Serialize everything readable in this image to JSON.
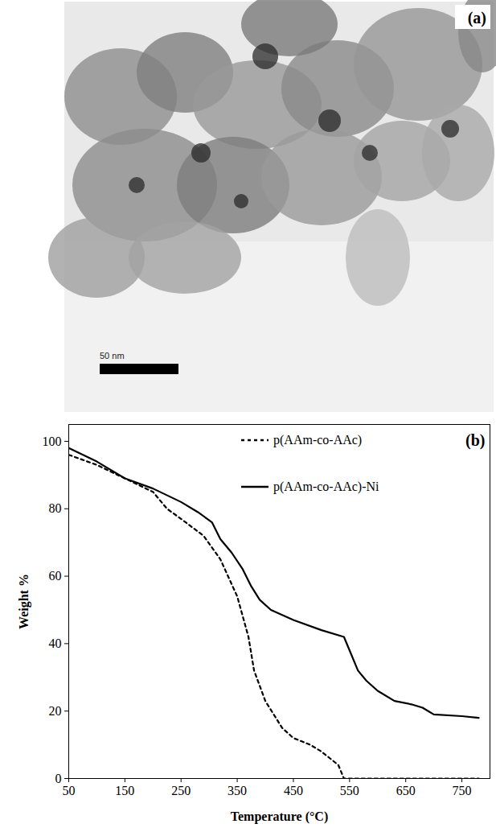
{
  "image_panel": {
    "label": "(a)",
    "scale_bar": "50 nm"
  },
  "chart_data": {
    "type": "line",
    "label": "(b)",
    "x_label": "Temperature (°C)",
    "y_label": "Weight %",
    "xlim": [
      50,
      800
    ],
    "xticks": [
      50,
      150,
      250,
      350,
      450,
      550,
      650,
      750
    ],
    "ylim": [
      0,
      105
    ],
    "yticks": [
      0,
      20,
      40,
      60,
      80,
      100
    ],
    "grid": false,
    "legend": "upper right",
    "series": [
      {
        "name": "p(AAm-co-AAc)",
        "color": "#000000",
        "line_style": "dashed",
        "x": [
          50,
          100,
          150,
          200,
          225,
          250,
          290,
          320,
          350,
          370,
          380,
          400,
          430,
          450,
          480,
          500,
          530,
          540,
          560,
          780
        ],
        "values": [
          96,
          93,
          89,
          85,
          80,
          77,
          72,
          65,
          54,
          42,
          32,
          23,
          15,
          12,
          10,
          8,
          4,
          0,
          0,
          0
        ]
      },
      {
        "name": "p(AAm-co-AAc)-Ni",
        "color": "#000000",
        "line_style": "solid",
        "x": [
          50,
          100,
          150,
          200,
          250,
          280,
          305,
          320,
          340,
          360,
          375,
          390,
          410,
          450,
          500,
          540,
          550,
          565,
          580,
          600,
          630,
          660,
          680,
          690,
          700,
          750,
          780
        ],
        "values": [
          98,
          94,
          89,
          86,
          82,
          79,
          76,
          71,
          67,
          62,
          57,
          53,
          50,
          47,
          44,
          42,
          38,
          32,
          29,
          26,
          23,
          22,
          21,
          20,
          19,
          18.5,
          18
        ]
      }
    ]
  }
}
